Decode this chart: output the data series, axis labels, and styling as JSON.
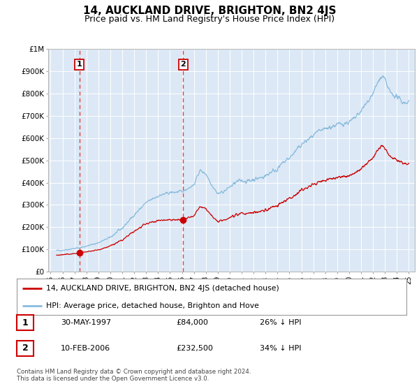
{
  "title": "14, AUCKLAND DRIVE, BRIGHTON, BN2 4JS",
  "subtitle": "Price paid vs. HM Land Registry's House Price Index (HPI)",
  "background_color": "#ffffff",
  "plot_bg_color": "#dce8f5",
  "grid_color": "#ffffff",
  "ylim": [
    0,
    1000000
  ],
  "yticks": [
    0,
    100000,
    200000,
    300000,
    400000,
    500000,
    600000,
    700000,
    800000,
    900000,
    1000000
  ],
  "ytick_labels": [
    "£0",
    "£100K",
    "£200K",
    "£300K",
    "£400K",
    "£500K",
    "£600K",
    "£700K",
    "£800K",
    "£900K",
    "£1M"
  ],
  "xlim_start": 1994.8,
  "xlim_end": 2025.5,
  "hpi_color": "#88bbdd",
  "price_color": "#cc0000",
  "marker_color": "#cc0000",
  "dashed_line_color": "#dd4444",
  "purchase1_x": 1997.41,
  "purchase1_y": 84000,
  "purchase1_label": "1",
  "purchase2_x": 2006.11,
  "purchase2_y": 232500,
  "purchase2_label": "2",
  "legend_entry1": "14, AUCKLAND DRIVE, BRIGHTON, BN2 4JS (detached house)",
  "legend_entry2": "HPI: Average price, detached house, Brighton and Hove",
  "table_rows": [
    {
      "num": "1",
      "date": "30-MAY-1997",
      "price": "£84,000",
      "hpi": "26% ↓ HPI"
    },
    {
      "num": "2",
      "date": "10-FEB-2006",
      "price": "£232,500",
      "hpi": "34% ↓ HPI"
    }
  ],
  "footer": "Contains HM Land Registry data © Crown copyright and database right 2024.\nThis data is licensed under the Open Government Licence v3.0.",
  "title_fontsize": 11,
  "subtitle_fontsize": 9
}
